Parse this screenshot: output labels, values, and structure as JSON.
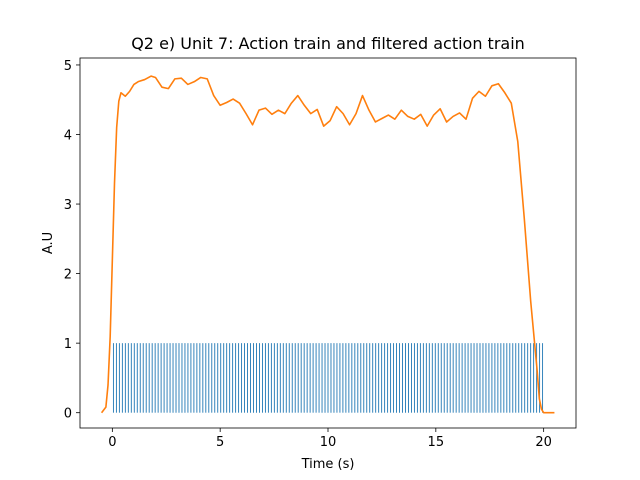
{
  "chart_data": {
    "type": "line",
    "title": "Q2 e) Unit 7: Action train and filtered action train",
    "xlabel": "Time (s)",
    "ylabel": "A.U",
    "xlim": [
      -1.5,
      21.5
    ],
    "ylim": [
      -0.22,
      5.1
    ],
    "xticks": [
      0,
      5,
      10,
      15,
      20
    ],
    "xtick_labels": [
      "0",
      "5",
      "10",
      "15",
      "20"
    ],
    "yticks": [
      0,
      1,
      2,
      3,
      4,
      5
    ],
    "ytick_labels": [
      "0",
      "1",
      "2",
      "3",
      "4",
      "5"
    ],
    "grid": false,
    "colors": {
      "spikes": "#1f77b4",
      "filtered": "#ff7f0e"
    },
    "spike_train": {
      "start": 0.05,
      "end": 19.95,
      "spike_count": 145,
      "height": 1
    },
    "filtered": {
      "x": [
        -0.5,
        -0.3,
        -0.2,
        -0.1,
        0.0,
        0.1,
        0.2,
        0.3,
        0.4,
        0.6,
        0.8,
        1.0,
        1.2,
        1.5,
        1.8,
        2.0,
        2.3,
        2.6,
        2.9,
        3.2,
        3.5,
        3.8,
        4.1,
        4.4,
        4.7,
        5.0,
        5.3,
        5.6,
        5.9,
        6.2,
        6.5,
        6.8,
        7.1,
        7.4,
        7.7,
        8.0,
        8.3,
        8.6,
        8.9,
        9.2,
        9.5,
        9.8,
        10.1,
        10.4,
        10.7,
        11.0,
        11.3,
        11.6,
        11.9,
        12.2,
        12.5,
        12.8,
        13.1,
        13.4,
        13.7,
        14.0,
        14.3,
        14.6,
        14.9,
        15.2,
        15.5,
        15.8,
        16.1,
        16.4,
        16.7,
        17.0,
        17.3,
        17.6,
        17.9,
        18.2,
        18.5,
        18.8,
        19.1,
        19.4,
        19.7,
        19.8,
        19.9,
        20.0,
        20.1,
        20.2,
        20.3,
        20.4,
        20.5
      ],
      "y": [
        0.0,
        0.08,
        0.4,
        1.1,
        2.2,
        3.3,
        4.1,
        4.48,
        4.6,
        4.55,
        4.62,
        4.72,
        4.76,
        4.79,
        4.84,
        4.82,
        4.68,
        4.66,
        4.8,
        4.81,
        4.72,
        4.76,
        4.82,
        4.8,
        4.56,
        4.42,
        4.46,
        4.51,
        4.45,
        4.3,
        4.14,
        4.35,
        4.38,
        4.29,
        4.35,
        4.3,
        4.45,
        4.56,
        4.42,
        4.3,
        4.36,
        4.12,
        4.2,
        4.4,
        4.3,
        4.14,
        4.3,
        4.56,
        4.35,
        4.18,
        4.23,
        4.28,
        4.22,
        4.35,
        4.26,
        4.22,
        4.29,
        4.12,
        4.28,
        4.37,
        4.18,
        4.26,
        4.31,
        4.22,
        4.52,
        4.62,
        4.55,
        4.7,
        4.73,
        4.6,
        4.45,
        3.9,
        2.8,
        1.6,
        0.6,
        0.2,
        0.05,
        0.0,
        0.0,
        0.0,
        0.0,
        0.0,
        0.0
      ]
    }
  }
}
